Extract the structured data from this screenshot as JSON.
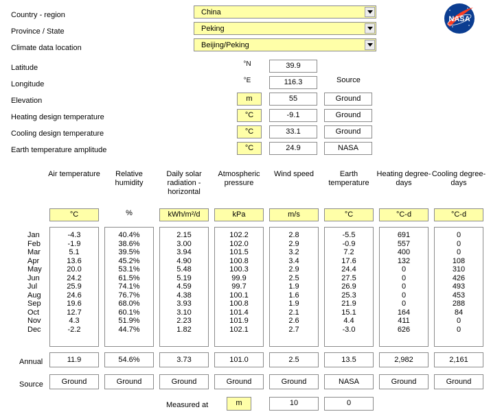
{
  "location": {
    "country_label": "Country - region",
    "country_value": "China",
    "province_label": "Province / State",
    "province_value": "Peking",
    "climate_label": "Climate data location",
    "climate_value": "Beijing/Peking"
  },
  "site": {
    "latitude_label": "Latitude",
    "latitude_unit": "°N",
    "latitude_value": "39.9",
    "longitude_label": "Longitude",
    "longitude_unit": "°E",
    "longitude_value": "116.3",
    "source_header": "Source",
    "elevation_label": "Elevation",
    "elevation_unit": "m",
    "elevation_value": "55",
    "elevation_source": "Ground",
    "heating_label": "Heating design temperature",
    "heating_unit": "°C",
    "heating_value": "-9.1",
    "heating_source": "Ground",
    "cooling_label": "Cooling design temperature",
    "cooling_unit": "°C",
    "cooling_value": "33.1",
    "cooling_source": "Ground",
    "earth_label": "Earth temperature amplitude",
    "earth_unit": "°C",
    "earth_value": "24.9",
    "earth_source": "NASA"
  },
  "logo": {
    "text": "NASA"
  },
  "columns": [
    {
      "header": "Air temperature",
      "unit": "°C",
      "unit_box": true,
      "annual": "11.9",
      "source": "Ground",
      "values": [
        "-4.3",
        "-1.9",
        "5.1",
        "13.6",
        "20.0",
        "24.2",
        "25.9",
        "24.6",
        "19.6",
        "12.7",
        "4.3",
        "-2.2"
      ]
    },
    {
      "header": "Relative humidity",
      "unit": "%",
      "unit_box": false,
      "annual": "54.6%",
      "source": "Ground",
      "values": [
        "40.4%",
        "38.6%",
        "39.5%",
        "45.2%",
        "53.1%",
        "61.5%",
        "74.1%",
        "76.7%",
        "68.0%",
        "60.1%",
        "51.9%",
        "44.7%"
      ]
    },
    {
      "header": "Daily solar radiation - horizontal",
      "unit": "kWh/m²/d",
      "unit_box": true,
      "annual": "3.73",
      "source": "Ground",
      "values": [
        "2.15",
        "3.00",
        "3.94",
        "4.90",
        "5.48",
        "5.19",
        "4.59",
        "4.38",
        "3.93",
        "3.10",
        "2.23",
        "1.82"
      ]
    },
    {
      "header": "Atmospheric pressure",
      "unit": "kPa",
      "unit_box": true,
      "annual": "101.0",
      "source": "Ground",
      "values": [
        "102.2",
        "102.0",
        "101.5",
        "100.8",
        "100.3",
        "99.9",
        "99.7",
        "100.1",
        "100.8",
        "101.4",
        "101.9",
        "102.1"
      ]
    },
    {
      "header": "Wind speed",
      "unit": "m/s",
      "unit_box": true,
      "annual": "2.5",
      "source": "Ground",
      "values": [
        "2.8",
        "2.9",
        "3.2",
        "3.4",
        "2.9",
        "2.5",
        "1.9",
        "1.6",
        "1.9",
        "2.1",
        "2.6",
        "2.7"
      ]
    },
    {
      "header": "Earth temperature",
      "unit": "°C",
      "unit_box": true,
      "annual": "13.5",
      "source": "NASA",
      "values": [
        "-5.5",
        "-0.9",
        "7.2",
        "17.6",
        "24.4",
        "27.5",
        "26.9",
        "25.3",
        "21.9",
        "15.1",
        "4.4",
        "-3.0"
      ]
    },
    {
      "header": "Heating degree-days",
      "unit": "°C-d",
      "unit_box": true,
      "annual": "2,982",
      "source": "Ground",
      "values": [
        "691",
        "557",
        "400",
        "132",
        "0",
        "0",
        "0",
        "0",
        "0",
        "164",
        "411",
        "626"
      ]
    },
    {
      "header": "Cooling degree-days",
      "unit": "°C-d",
      "unit_box": true,
      "annual": "2,161",
      "source": "Ground",
      "values": [
        "0",
        "0",
        "0",
        "108",
        "310",
        "426",
        "493",
        "453",
        "288",
        "84",
        "0",
        "0"
      ]
    }
  ],
  "months": [
    "Jan",
    "Feb",
    "Mar",
    "Apr",
    "May",
    "Jun",
    "Jul",
    "Aug",
    "Sep",
    "Oct",
    "Nov",
    "Dec"
  ],
  "annual_label": "Annual",
  "source_label": "Source",
  "measured": {
    "label": "Measured at",
    "unit": "m",
    "value1": "10",
    "value2": "0"
  }
}
